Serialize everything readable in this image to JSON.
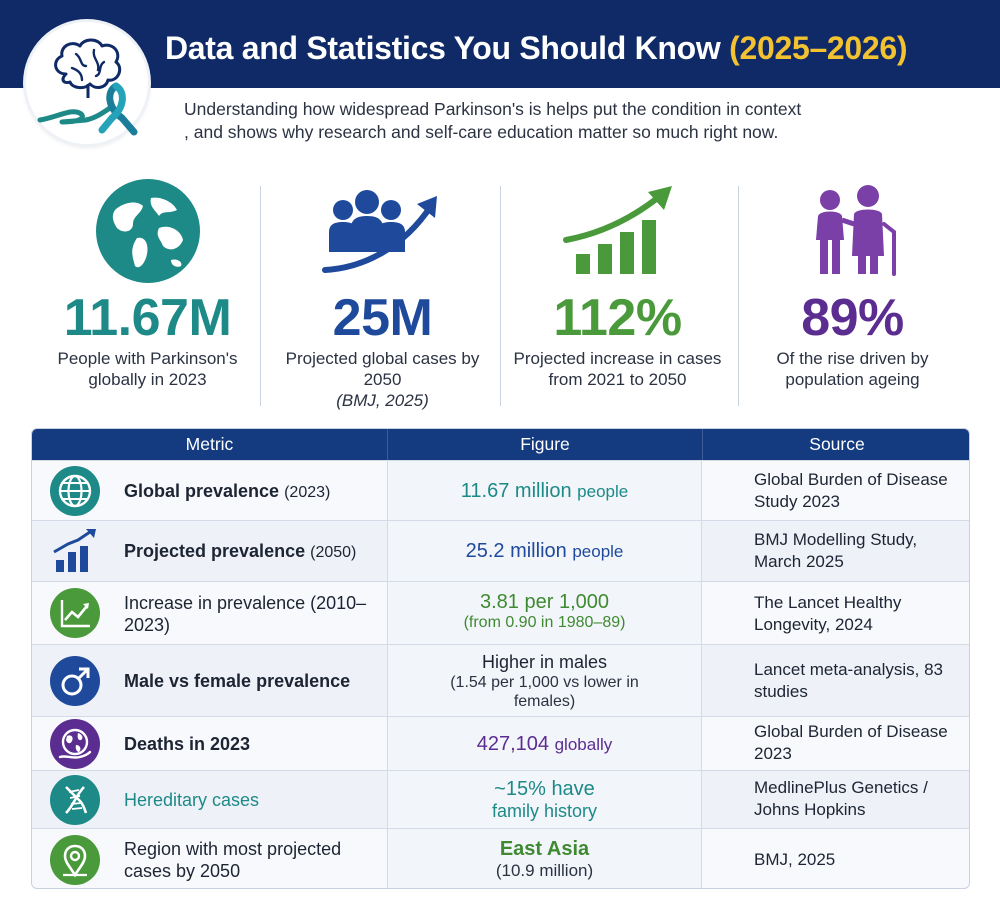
{
  "header": {
    "title_main": "Data and Statistics You Should Know",
    "title_years": "(2025–2026)"
  },
  "intro": "Understanding how widespread Parkinson's is helps put the condition in context , and shows why research and self-care education matter so much right now.",
  "stats": [
    {
      "value": "11.67M",
      "label": "People with Parkinson's globally in 2023",
      "note": "",
      "color": "#1d8a87",
      "icon": "globe-icon"
    },
    {
      "value": "25M",
      "label": "Projected global cases by 2050",
      "note": "(BMJ, 2025)",
      "color": "#1f4a9c",
      "icon": "people-growth-icon"
    },
    {
      "value": "112%",
      "label": "Projected increase in cases from 2021 to 2050",
      "note": "",
      "color": "#4a9a3c",
      "icon": "bar-growth-icon"
    },
    {
      "value": "89%",
      "label": "Of the rise driven by population ageing",
      "note": "",
      "color": "#5c2d91",
      "icon": "elderly-couple-icon"
    }
  ],
  "table": {
    "headers": [
      "Metric",
      "Figure",
      "Source"
    ],
    "rows": [
      {
        "icon": "globe-icon",
        "icon_color": "#1d8a87",
        "metric": "Global prevalence",
        "metric_suffix": "(2023)",
        "figure_main": "11.67 million",
        "figure_unit": "people",
        "figure_sub": "",
        "figure_color": "#1d8a87",
        "source": "Global Burden of Disease Study 2023"
      },
      {
        "icon": "bar-chart-icon",
        "icon_color": "#1f4a9c",
        "metric": "Projected prevalence",
        "metric_suffix": "(2050)",
        "figure_main": "25.2 million",
        "figure_unit": "people",
        "figure_sub": "",
        "figure_color": "#1f4a9c",
        "source": "BMJ Modelling Study, March 2025"
      },
      {
        "icon": "trend-up-icon",
        "icon_color": "#4a9a3c",
        "metric": "Increase in prevalence (2010–2023)",
        "metric_suffix": "",
        "figure_main": "3.81 per 1,000",
        "figure_unit": "",
        "figure_sub": "(from 0.90 in 1980–89)",
        "figure_color": "#3f8a31",
        "source": "The Lancet Healthy Longevity, 2024"
      },
      {
        "icon": "male-symbol-icon",
        "icon_color": "#1f4a9c",
        "metric": "Male vs female prevalence",
        "metric_suffix": "",
        "figure_main": "Higher in males",
        "figure_unit": "",
        "figure_sub": "(1.54 per 1,000 vs lower in females)",
        "figure_color": "#1d2433",
        "source": "Lancet meta-analysis, 83 studies"
      },
      {
        "icon": "globe-hand-icon",
        "icon_color": "#5c2d91",
        "metric": "Deaths in 2023",
        "metric_suffix": "",
        "figure_main": "427,104",
        "figure_unit": "globally",
        "figure_sub": "",
        "figure_color": "#5c2d91",
        "source": "Global Burden of Disease 2023"
      },
      {
        "icon": "dna-icon",
        "icon_color": "#1d8a87",
        "metric": "Hereditary cases",
        "metric_suffix": "",
        "figure_main": "~15% have",
        "figure_unit": "",
        "figure_sub": "family history",
        "figure_color": "#1d8a87",
        "source": "MedlinePlus Genetics / Johns Hopkins"
      },
      {
        "icon": "location-pin-icon",
        "icon_color": "#4a9a3c",
        "metric": "Region with most projected cases by 2050",
        "metric_suffix": "",
        "figure_main": "East Asia",
        "figure_unit": "",
        "figure_sub": "(10.9 million)",
        "figure_color": "#3f8a31",
        "source": "BMJ, 2025"
      }
    ]
  }
}
